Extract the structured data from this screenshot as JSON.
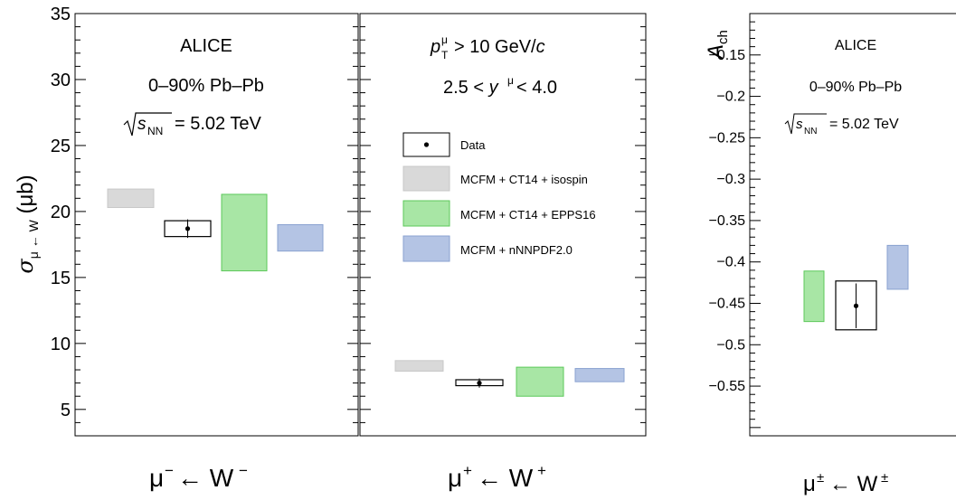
{
  "chart_data": [
    {
      "type": "bar",
      "panel": "mu-minus",
      "ylabel": "σ μ ← W (μb)",
      "ylim": [
        3,
        35
      ],
      "yticks": [
        5,
        10,
        15,
        20,
        25,
        30,
        35
      ],
      "xlabel": "μ⁻ ← W⁻",
      "annotations": [
        "ALICE",
        "0–90% Pb–Pb",
        "√sNN = 5.02 TeV"
      ],
      "data": {
        "value": 18.7,
        "stat_error": 0.7,
        "syst_low": 18.1,
        "syst_high": 19.3
      },
      "models": [
        {
          "name": "MCFM + CT14 + isospin",
          "low": 20.3,
          "high": 21.7
        },
        {
          "name": "MCFM + CT14 + EPPS16",
          "low": 15.5,
          "high": 21.3
        },
        {
          "name": "MCFM + nNNPDF2.0",
          "low": 17.0,
          "high": 19.0
        }
      ]
    },
    {
      "type": "bar",
      "panel": "mu-plus",
      "ylim": [
        3,
        35
      ],
      "xlabel": "μ⁺ ← W⁺",
      "annotations": [
        "p μ T > 10 GeV/c",
        "2.5 < y μ < 4.0"
      ],
      "data": {
        "value": 7.0,
        "stat_error": 0.35,
        "syst_low": 6.8,
        "syst_high": 7.25
      },
      "models": [
        {
          "name": "MCFM + CT14 + isospin",
          "low": 7.9,
          "high": 8.7
        },
        {
          "name": "MCFM + CT14 + EPPS16",
          "low": 6.0,
          "high": 8.2
        },
        {
          "name": "MCFM + nNNPDF2.0",
          "low": 7.1,
          "high": 8.1
        }
      ],
      "legend": [
        "Data",
        "MCFM + CT14 + isospin",
        "MCFM + CT14 + EPPS16",
        "MCFM + nNNPDF2.0"
      ]
    },
    {
      "type": "bar",
      "panel": "charge-asymmetry",
      "ylabel": "Ach",
      "ylim": [
        -0.61,
        -0.1
      ],
      "yticks": [
        -0.15,
        -0.2,
        -0.25,
        -0.3,
        -0.35,
        -0.4,
        -0.45,
        -0.5,
        -0.55
      ],
      "ytick_labels": [
        "−0.15",
        "−0.2",
        "−0.25",
        "−0.3",
        "−0.35",
        "−0.4",
        "−0.45",
        "−0.5",
        "−0.55"
      ],
      "xlabel": "μ± ← W±",
      "annotations": [
        "ALICE",
        "0–90% Pb–Pb",
        "√sNN = 5.02 TeV"
      ],
      "data": {
        "value": -0.453,
        "stat_error": 0.027,
        "syst_low": -0.482,
        "syst_high": -0.423
      },
      "models": [
        {
          "name": "MCFM + CT14 + EPPS16",
          "low": -0.472,
          "high": -0.411
        },
        {
          "name": "MCFM + nNNPDF2.0",
          "low": -0.433,
          "high": -0.38
        }
      ]
    }
  ],
  "colors": {
    "isospin_fill": "#d9d9d9",
    "isospin_stroke": "#c8c8c8",
    "epps16_fill": "#a8e6a5",
    "epps16_stroke": "#5cc85a",
    "nnpdf_fill": "#b4c4e4",
    "nnpdf_stroke": "#8aa2d0"
  }
}
